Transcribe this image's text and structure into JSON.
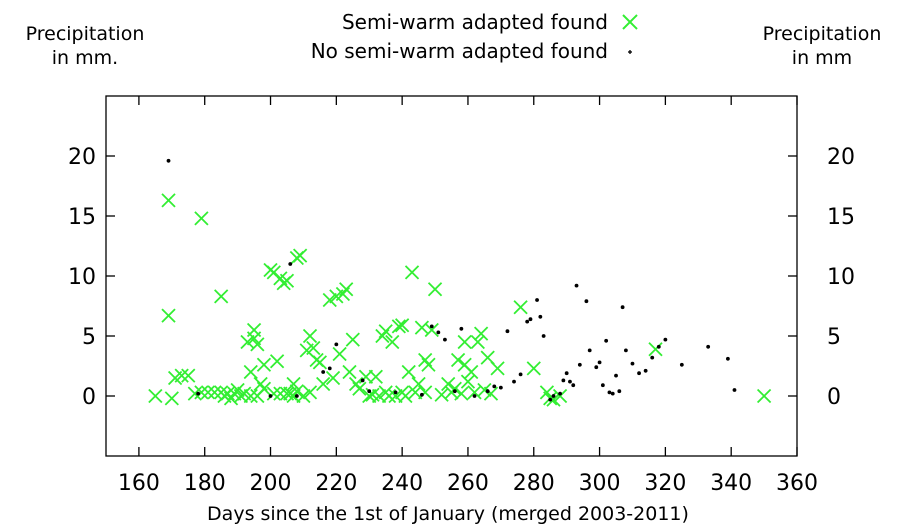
{
  "chart_data": {
    "type": "scatter",
    "title": "",
    "xlabel": "Days since the 1st of January (merged 2003-2011)",
    "ylabel_left": "Precipitation\nin mm.",
    "ylabel_right": "Precipitation\nin mm",
    "xlim": [
      150,
      360
    ],
    "ylim": [
      -5,
      25
    ],
    "xticks": [
      160,
      180,
      200,
      220,
      240,
      260,
      280,
      300,
      320,
      340,
      360
    ],
    "yticks": [
      0,
      5,
      10,
      15,
      20
    ],
    "grid": false,
    "legend_position": "top-center",
    "series": [
      {
        "name": "Semi-warm adapted found",
        "marker": "x",
        "color": "#33ee33",
        "points": [
          [
            165,
            0
          ],
          [
            169,
            6.7
          ],
          [
            169,
            16.3
          ],
          [
            170,
            -0.2
          ],
          [
            171,
            1.5
          ],
          [
            173,
            1.7
          ],
          [
            175,
            1.7
          ],
          [
            177,
            0.2
          ],
          [
            179,
            14.8
          ],
          [
            179,
            0.3
          ],
          [
            181,
            0.3
          ],
          [
            183,
            0.3
          ],
          [
            185,
            0.3
          ],
          [
            185,
            8.3
          ],
          [
            186,
            0
          ],
          [
            187,
            0.2
          ],
          [
            188,
            -0.2
          ],
          [
            189,
            0.2
          ],
          [
            190,
            0.5
          ],
          [
            191,
            0
          ],
          [
            192,
            0.2
          ],
          [
            193,
            4.5
          ],
          [
            194,
            2
          ],
          [
            194,
            0
          ],
          [
            195,
            5.5
          ],
          [
            195,
            4.8
          ],
          [
            196,
            0
          ],
          [
            196,
            4.3
          ],
          [
            197,
            1
          ],
          [
            198,
            0.6
          ],
          [
            198,
            2.6
          ],
          [
            200,
            10.5
          ],
          [
            201,
            10.3
          ],
          [
            201,
            0.2
          ],
          [
            202,
            2.9
          ],
          [
            203,
            9.8
          ],
          [
            203,
            0.2
          ],
          [
            204,
            9.4
          ],
          [
            205,
            9.6
          ],
          [
            205,
            0.2
          ],
          [
            206,
            0.2
          ],
          [
            207,
            1
          ],
          [
            207,
            0
          ],
          [
            208,
            11.5
          ],
          [
            208,
            0.4
          ],
          [
            209,
            11.7
          ],
          [
            210,
            0
          ],
          [
            211,
            3.8
          ],
          [
            212,
            5
          ],
          [
            212,
            0.3
          ],
          [
            213,
            4
          ],
          [
            214,
            3
          ],
          [
            215,
            2.8
          ],
          [
            216,
            1
          ],
          [
            218,
            8
          ],
          [
            219,
            1.5
          ],
          [
            220,
            8.3
          ],
          [
            221,
            3.5
          ],
          [
            222,
            8.5
          ],
          [
            223,
            8.9
          ],
          [
            224,
            2
          ],
          [
            225,
            4.7
          ],
          [
            226,
            1
          ],
          [
            227,
            0.6
          ],
          [
            229,
            1.6
          ],
          [
            230,
            0
          ],
          [
            231,
            0.1
          ],
          [
            232,
            1.6
          ],
          [
            233,
            0
          ],
          [
            234,
            5
          ],
          [
            235,
            0.3
          ],
          [
            235,
            5.4
          ],
          [
            236,
            0
          ],
          [
            237,
            4.5
          ],
          [
            238,
            0
          ],
          [
            239,
            5.8
          ],
          [
            240,
            5.9
          ],
          [
            240,
            0.3
          ],
          [
            241,
            0
          ],
          [
            242,
            2
          ],
          [
            243,
            10.3
          ],
          [
            244,
            0.3
          ],
          [
            245,
            1
          ],
          [
            246,
            5.7
          ],
          [
            247,
            3
          ],
          [
            247,
            0.3
          ],
          [
            248,
            2.6
          ],
          [
            249,
            5.5
          ],
          [
            250,
            8.9
          ],
          [
            252,
            0.1
          ],
          [
            254,
            1
          ],
          [
            255,
            0.3
          ],
          [
            256,
            0.6
          ],
          [
            257,
            3
          ],
          [
            258,
            0.2
          ],
          [
            259,
            2.6
          ],
          [
            259,
            4.5
          ],
          [
            260,
            1.2
          ],
          [
            261,
            2
          ],
          [
            262,
            0.3
          ],
          [
            263,
            4.5
          ],
          [
            264,
            5.2
          ],
          [
            265,
            0.5
          ],
          [
            266,
            3.2
          ],
          [
            267,
            0.2
          ],
          [
            269,
            2.3
          ],
          [
            276,
            7.4
          ],
          [
            280,
            2.3
          ],
          [
            284,
            0.3
          ],
          [
            285,
            -0.2
          ],
          [
            286,
            -0.3
          ],
          [
            288,
            0
          ],
          [
            317,
            3.9
          ],
          [
            350,
            0
          ]
        ]
      },
      {
        "name": "No semi-warm adapted found",
        "marker": "dot",
        "color": "#000000",
        "points": [
          [
            169,
            19.6
          ],
          [
            178,
            0.2
          ],
          [
            200,
            0
          ],
          [
            206,
            11
          ],
          [
            208,
            0
          ],
          [
            216,
            2
          ],
          [
            218,
            2.3
          ],
          [
            220,
            4.3
          ],
          [
            228,
            1.3
          ],
          [
            230,
            0.4
          ],
          [
            238,
            0.3
          ],
          [
            246,
            0.1
          ],
          [
            249,
            5.8
          ],
          [
            251,
            5.3
          ],
          [
            253,
            4.7
          ],
          [
            256,
            0.4
          ],
          [
            258,
            5.6
          ],
          [
            262,
            0
          ],
          [
            266,
            0.4
          ],
          [
            268,
            0.8
          ],
          [
            270,
            0.7
          ],
          [
            272,
            5.4
          ],
          [
            274,
            1.2
          ],
          [
            276,
            1.8
          ],
          [
            278,
            6.2
          ],
          [
            279,
            6.4
          ],
          [
            281,
            8
          ],
          [
            282,
            6.6
          ],
          [
            283,
            5
          ],
          [
            285,
            -0.3
          ],
          [
            286,
            0
          ],
          [
            288,
            0.2
          ],
          [
            289,
            1.3
          ],
          [
            290,
            1.9
          ],
          [
            291,
            1.2
          ],
          [
            292,
            0.9
          ],
          [
            293,
            9.2
          ],
          [
            294,
            2.6
          ],
          [
            296,
            7.9
          ],
          [
            297,
            3.8
          ],
          [
            299,
            2.4
          ],
          [
            300,
            2.8
          ],
          [
            301,
            0.9
          ],
          [
            302,
            4.6
          ],
          [
            303,
            0.3
          ],
          [
            304,
            0.2
          ],
          [
            305,
            1.7
          ],
          [
            306,
            0.4
          ],
          [
            307,
            7.4
          ],
          [
            308,
            3.8
          ],
          [
            310,
            2.7
          ],
          [
            312,
            1.9
          ],
          [
            314,
            2.1
          ],
          [
            316,
            3.2
          ],
          [
            318,
            4.1
          ],
          [
            320,
            4.7
          ],
          [
            325,
            2.6
          ],
          [
            333,
            4.1
          ],
          [
            339,
            3.1
          ],
          [
            341,
            0.5
          ]
        ]
      }
    ]
  }
}
